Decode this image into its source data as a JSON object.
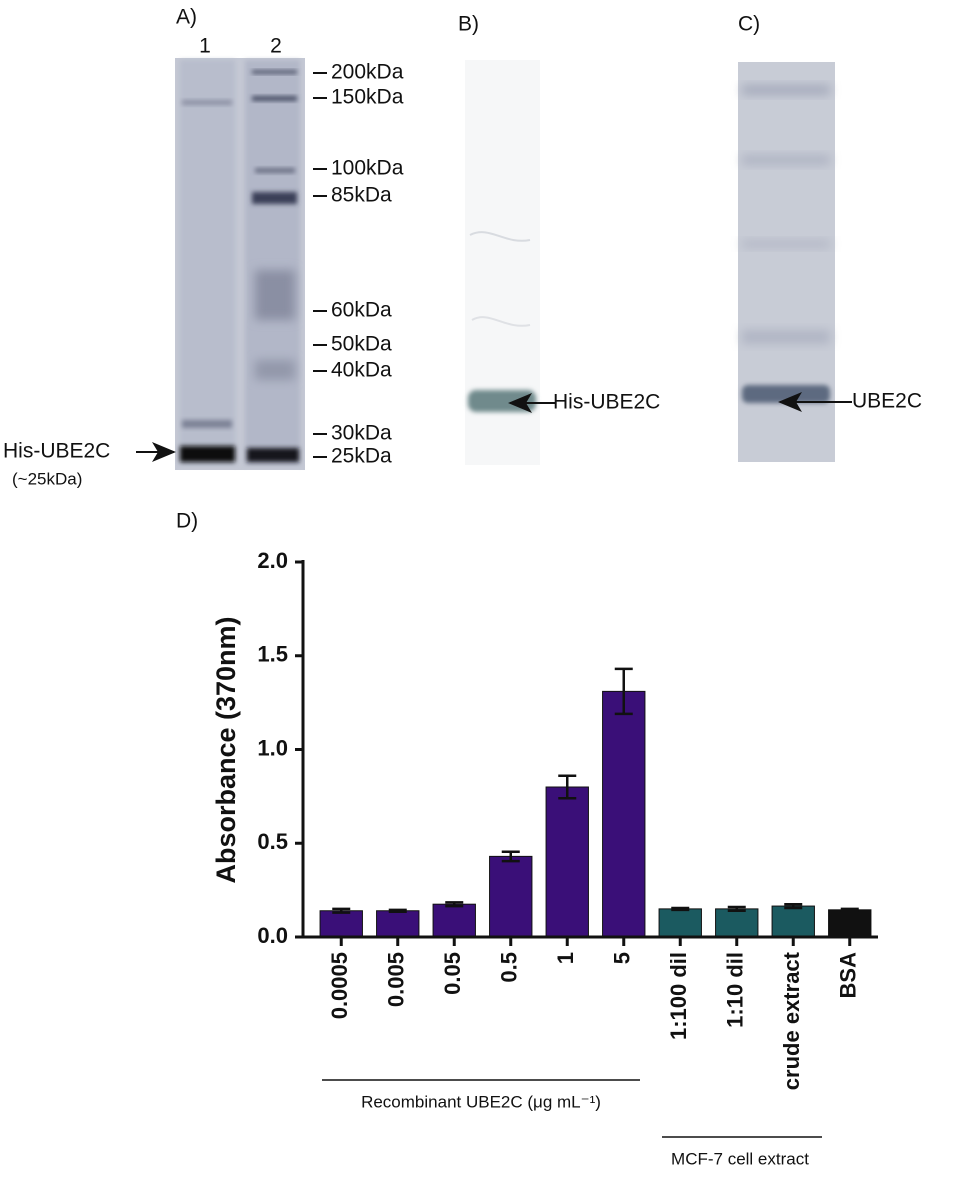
{
  "gels": {
    "a": {
      "label": "A)",
      "lanes": [
        "1",
        "2"
      ],
      "markers": [
        "200kDa",
        "150kDa",
        "100kDa",
        "85kDa",
        "60kDa",
        "50kDa",
        "40kDa",
        "30kDa",
        "25kDa"
      ],
      "protein_label": "His-UBE2C",
      "size_note": "(~25kDa)"
    },
    "b": {
      "label": "B)",
      "band_label": "His-UBE2C"
    },
    "c": {
      "label": "C)",
      "band_label": "UBE2C"
    }
  },
  "chart_data": {
    "type": "bar",
    "panel_label": "D)",
    "y_label": "Absorbance (370nm)",
    "categories": [
      "0.0005",
      "0.005",
      "0.05",
      "0.5",
      "1",
      "5",
      "1:100 dil",
      "1:10 dil",
      "crude extract",
      "BSA"
    ],
    "values": [
      0.14,
      0.14,
      0.175,
      0.43,
      0.8,
      1.31,
      0.15,
      0.15,
      0.165,
      0.145
    ],
    "errors": [
      0.01,
      0.005,
      0.01,
      0.025,
      0.06,
      0.12,
      0.005,
      0.01,
      0.01,
      0.005
    ],
    "colors": [
      "#3a0f78",
      "#3a0f78",
      "#3a0f78",
      "#3a0f78",
      "#3a0f78",
      "#3a0f78",
      "#1b5a60",
      "#1b5a60",
      "#1b5a60",
      "#111111"
    ],
    "groups": [
      "Recombinant UBE2C (μg mL⁻¹)",
      "MCF-7 cell extract"
    ],
    "ylim": [
      0,
      2
    ],
    "yticks": [
      {
        "value": 0,
        "label": "0.0"
      },
      {
        "value": 0.5,
        "label": "0.5"
      },
      {
        "value": 1,
        "label": "1.0"
      },
      {
        "value": 1.5,
        "label": "1.5"
      },
      {
        "value": 2,
        "label": "2.0"
      }
    ]
  }
}
